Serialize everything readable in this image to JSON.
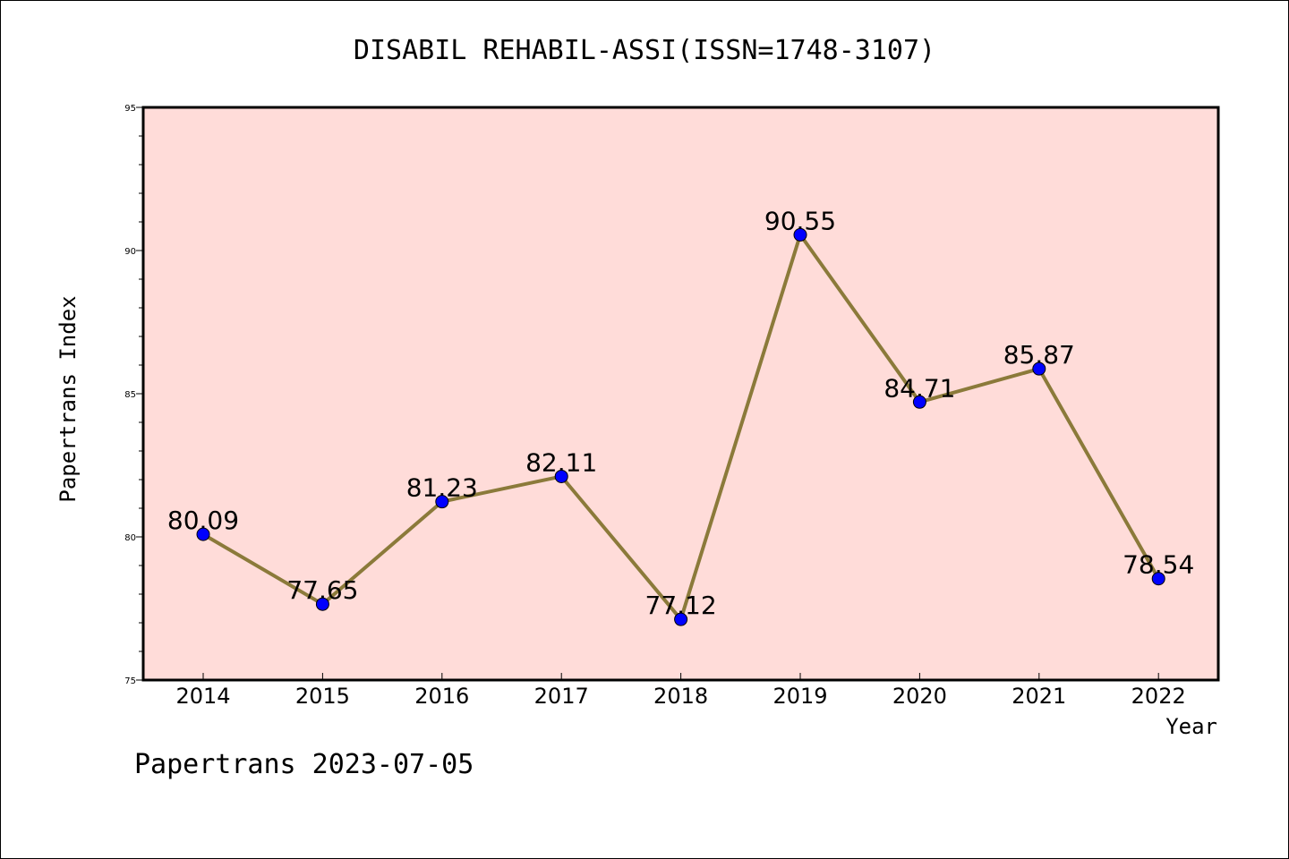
{
  "chart_data": {
    "type": "line",
    "title": "DISABIL REHABIL-ASSI(ISSN=1748-3107)",
    "xlabel": "Year",
    "ylabel": "Papertrans Index",
    "x": [
      "2014",
      "2015",
      "2016",
      "2017",
      "2018",
      "2019",
      "2020",
      "2021",
      "2022"
    ],
    "series": [
      {
        "values": [
          80.09,
          77.65,
          81.23,
          82.11,
          77.12,
          90.55,
          84.71,
          85.87,
          78.54
        ],
        "labels": [
          "80.09",
          "77.65",
          "81.23",
          "82.11",
          "77.12",
          "90.55",
          "84.71",
          "85.87",
          "78.54"
        ]
      }
    ],
    "ylim": [
      75,
      95
    ],
    "yticks": [
      75,
      80,
      85,
      90,
      95
    ],
    "ytick_labels": [
      "75",
      "80",
      "85",
      "90",
      "95"
    ],
    "grid": false,
    "legend": "none",
    "colors": {
      "plot_background": "#ffdcd9",
      "line": "#8b7a3a",
      "marker": "#0000ff",
      "axes": "#000000"
    }
  },
  "footer": {
    "text": "Papertrans 2023-07-05"
  }
}
